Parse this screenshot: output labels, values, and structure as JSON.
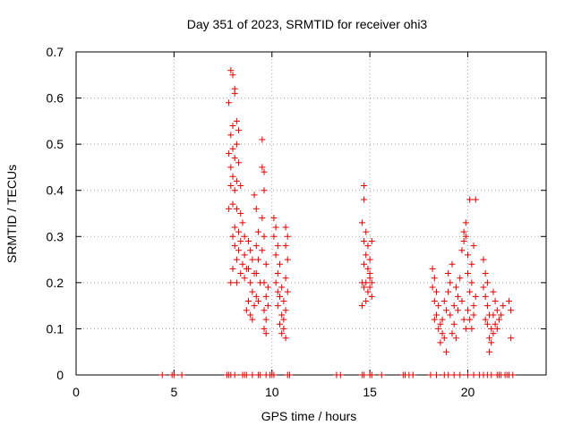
{
  "chart_data": {
    "type": "scatter",
    "title": "Day 351 of 2023, SRMTID for receiver ohi3",
    "xlabel": "GPS time / hours",
    "ylabel": "SRMTID / TECUs",
    "xlim": [
      0,
      24
    ],
    "ylim": [
      0,
      0.7
    ],
    "xticks": [
      0,
      5,
      10,
      15,
      20
    ],
    "xtick_labels": [
      "0",
      "5",
      "10",
      "15",
      "20"
    ],
    "yticks": [
      0,
      0.1,
      0.2,
      0.3,
      0.4,
      0.5,
      0.6,
      0.7
    ],
    "ytick_labels": [
      "0",
      "0.1",
      "0.2",
      "0.3",
      "0.4",
      "0.5",
      "0.6",
      "0.7"
    ],
    "grid": true,
    "marker": "plus",
    "color": "#e00000",
    "series": [
      {
        "name": "SRMTID",
        "points": [
          [
            4.4,
            0
          ],
          [
            4.9,
            0
          ],
          [
            5.0,
            0
          ],
          [
            5.4,
            0
          ],
          [
            7.7,
            0
          ],
          [
            7.8,
            0
          ],
          [
            7.9,
            0
          ],
          [
            8.1,
            0
          ],
          [
            8.5,
            0
          ],
          [
            8.6,
            0
          ],
          [
            8.7,
            0
          ],
          [
            9.0,
            0
          ],
          [
            9.3,
            0
          ],
          [
            9.4,
            0
          ],
          [
            9.7,
            0
          ],
          [
            9.9,
            0
          ],
          [
            10.0,
            0
          ],
          [
            10.1,
            0
          ],
          [
            10.8,
            0
          ],
          [
            10.9,
            0
          ],
          [
            13.3,
            0
          ],
          [
            13.5,
            0
          ],
          [
            14.6,
            0
          ],
          [
            14.7,
            0
          ],
          [
            15.0,
            0
          ],
          [
            15.1,
            0
          ],
          [
            15.6,
            0
          ],
          [
            16.7,
            0
          ],
          [
            16.8,
            0
          ],
          [
            17.0,
            0
          ],
          [
            17.2,
            0
          ],
          [
            18.1,
            0
          ],
          [
            18.4,
            0
          ],
          [
            18.8,
            0
          ],
          [
            19.0,
            0
          ],
          [
            19.3,
            0
          ],
          [
            19.6,
            0
          ],
          [
            20.0,
            0
          ],
          [
            20.3,
            0
          ],
          [
            20.6,
            0
          ],
          [
            20.8,
            0
          ],
          [
            21.0,
            0
          ],
          [
            21.2,
            0
          ],
          [
            21.5,
            0
          ],
          [
            21.6,
            0
          ],
          [
            21.7,
            0
          ],
          [
            21.9,
            0
          ],
          [
            22.0,
            0
          ],
          [
            22.1,
            0
          ],
          [
            22.3,
            0
          ],
          [
            7.9,
            0.66
          ],
          [
            8.0,
            0.65
          ],
          [
            8.1,
            0.62
          ],
          [
            8.1,
            0.61
          ],
          [
            7.8,
            0.59
          ],
          [
            8.0,
            0.54
          ],
          [
            8.2,
            0.55
          ],
          [
            8.3,
            0.53
          ],
          [
            7.9,
            0.52
          ],
          [
            8.2,
            0.5
          ],
          [
            8.0,
            0.49
          ],
          [
            8.1,
            0.47
          ],
          [
            7.8,
            0.48
          ],
          [
            7.9,
            0.45
          ],
          [
            8.3,
            0.46
          ],
          [
            8.0,
            0.43
          ],
          [
            8.2,
            0.42
          ],
          [
            7.9,
            0.41
          ],
          [
            8.1,
            0.4
          ],
          [
            8.4,
            0.41
          ],
          [
            8.0,
            0.37
          ],
          [
            8.2,
            0.36
          ],
          [
            7.8,
            0.36
          ],
          [
            8.4,
            0.35
          ],
          [
            8.5,
            0.33
          ],
          [
            8.1,
            0.32
          ],
          [
            8.3,
            0.31
          ],
          [
            8.0,
            0.3
          ],
          [
            8.4,
            0.29
          ],
          [
            8.6,
            0.3
          ],
          [
            8.1,
            0.28
          ],
          [
            8.3,
            0.27
          ],
          [
            8.6,
            0.26
          ],
          [
            8.2,
            0.25
          ],
          [
            8.5,
            0.24
          ],
          [
            8.0,
            0.23
          ],
          [
            8.4,
            0.22
          ],
          [
            8.7,
            0.23
          ],
          [
            8.2,
            0.2
          ],
          [
            8.6,
            0.21
          ],
          [
            7.9,
            0.2
          ],
          [
            8.8,
            0.29
          ],
          [
            8.9,
            0.27
          ],
          [
            9.0,
            0.25
          ],
          [
            8.8,
            0.23
          ],
          [
            9.1,
            0.22
          ],
          [
            8.9,
            0.2
          ],
          [
            9.0,
            0.18
          ],
          [
            8.8,
            0.16
          ],
          [
            9.1,
            0.15
          ],
          [
            8.9,
            0.13
          ],
          [
            9.0,
            0.12
          ],
          [
            8.7,
            0.14
          ],
          [
            9.2,
            0.17
          ],
          [
            9.1,
            0.39
          ],
          [
            9.2,
            0.36
          ],
          [
            9.3,
            0.31
          ],
          [
            9.2,
            0.28
          ],
          [
            9.3,
            0.25
          ],
          [
            9.2,
            0.22
          ],
          [
            9.4,
            0.2
          ],
          [
            9.3,
            0.16
          ],
          [
            9.5,
            0.51
          ],
          [
            9.5,
            0.45
          ],
          [
            9.6,
            0.44
          ],
          [
            9.6,
            0.4
          ],
          [
            9.5,
            0.34
          ],
          [
            9.6,
            0.3
          ],
          [
            9.5,
            0.27
          ],
          [
            9.7,
            0.24
          ],
          [
            9.6,
            0.2
          ],
          [
            9.7,
            0.17
          ],
          [
            9.6,
            0.14
          ],
          [
            9.7,
            0.12
          ],
          [
            9.6,
            0.1
          ],
          [
            9.7,
            0.09
          ],
          [
            9.8,
            0.15
          ],
          [
            9.8,
            0.19
          ],
          [
            10.1,
            0.34
          ],
          [
            10.2,
            0.32
          ],
          [
            10.1,
            0.3
          ],
          [
            10.3,
            0.28
          ],
          [
            10.2,
            0.26
          ],
          [
            10.4,
            0.24
          ],
          [
            10.3,
            0.22
          ],
          [
            10.2,
            0.2
          ],
          [
            10.5,
            0.19
          ],
          [
            10.4,
            0.17
          ],
          [
            10.3,
            0.15
          ],
          [
            10.5,
            0.13
          ],
          [
            10.4,
            0.11
          ],
          [
            10.6,
            0.1
          ],
          [
            10.7,
            0.08
          ],
          [
            10.5,
            0.09
          ],
          [
            10.6,
            0.12
          ],
          [
            10.7,
            0.14
          ],
          [
            10.8,
            0.18
          ],
          [
            10.7,
            0.21
          ],
          [
            10.8,
            0.25
          ],
          [
            10.7,
            0.28
          ],
          [
            10.8,
            0.3
          ],
          [
            10.7,
            0.32
          ],
          [
            10.6,
            0.16
          ],
          [
            10.3,
            0.18
          ],
          [
            14.6,
            0.2
          ],
          [
            14.7,
            0.41
          ],
          [
            14.7,
            0.38
          ],
          [
            14.6,
            0.33
          ],
          [
            14.8,
            0.31
          ],
          [
            14.7,
            0.29
          ],
          [
            14.9,
            0.28
          ],
          [
            14.8,
            0.26
          ],
          [
            14.7,
            0.24
          ],
          [
            14.9,
            0.23
          ],
          [
            15.0,
            0.21
          ],
          [
            14.8,
            0.2
          ],
          [
            15.0,
            0.19
          ],
          [
            14.9,
            0.18
          ],
          [
            15.1,
            0.17
          ],
          [
            14.8,
            0.16
          ],
          [
            14.6,
            0.15
          ],
          [
            15.0,
            0.25
          ],
          [
            15.1,
            0.29
          ],
          [
            15.0,
            0.22
          ],
          [
            14.7,
            0.19
          ],
          [
            15.1,
            0.2
          ],
          [
            18.2,
            0.23
          ],
          [
            18.3,
            0.21
          ],
          [
            18.2,
            0.19
          ],
          [
            18.4,
            0.18
          ],
          [
            18.3,
            0.16
          ],
          [
            18.5,
            0.15
          ],
          [
            18.4,
            0.13
          ],
          [
            18.3,
            0.12
          ],
          [
            18.6,
            0.11
          ],
          [
            18.5,
            0.1
          ],
          [
            18.7,
            0.09
          ],
          [
            18.8,
            0.08
          ],
          [
            18.6,
            0.07
          ],
          [
            18.9,
            0.05
          ],
          [
            18.7,
            0.12
          ],
          [
            18.9,
            0.14
          ],
          [
            18.8,
            0.16
          ],
          [
            19.0,
            0.18
          ],
          [
            19.1,
            0.2
          ],
          [
            19.0,
            0.22
          ],
          [
            19.2,
            0.24
          ],
          [
            19.1,
            0.13
          ],
          [
            19.3,
            0.11
          ],
          [
            19.2,
            0.09
          ],
          [
            19.4,
            0.08
          ],
          [
            19.3,
            0.15
          ],
          [
            19.5,
            0.17
          ],
          [
            19.4,
            0.19
          ],
          [
            19.6,
            0.21
          ],
          [
            19.5,
            0.14
          ],
          [
            19.7,
            0.27
          ],
          [
            19.8,
            0.29
          ],
          [
            19.8,
            0.31
          ],
          [
            19.9,
            0.33
          ],
          [
            19.9,
            0.3
          ],
          [
            20.0,
            0.26
          ],
          [
            20.0,
            0.22
          ],
          [
            20.1,
            0.38
          ],
          [
            19.7,
            0.16
          ],
          [
            19.8,
            0.12
          ],
          [
            19.9,
            0.1
          ],
          [
            20.0,
            0.14
          ],
          [
            20.1,
            0.18
          ],
          [
            20.2,
            0.2
          ],
          [
            20.1,
            0.12
          ],
          [
            20.2,
            0.1
          ],
          [
            20.3,
            0.13
          ],
          [
            20.4,
            0.38
          ],
          [
            20.3,
            0.15
          ],
          [
            20.4,
            0.17
          ],
          [
            20.2,
            0.24
          ],
          [
            20.3,
            0.28
          ],
          [
            20.8,
            0.25
          ],
          [
            20.9,
            0.22
          ],
          [
            20.8,
            0.19
          ],
          [
            20.9,
            0.17
          ],
          [
            21.0,
            0.15
          ],
          [
            21.1,
            0.13
          ],
          [
            21.0,
            0.11
          ],
          [
            21.2,
            0.1
          ],
          [
            21.1,
            0.08
          ],
          [
            21.3,
            0.09
          ],
          [
            21.2,
            0.07
          ],
          [
            21.4,
            0.11
          ],
          [
            21.3,
            0.13
          ],
          [
            21.5,
            0.14
          ],
          [
            21.4,
            0.16
          ],
          [
            21.6,
            0.12
          ],
          [
            21.5,
            0.1
          ],
          [
            21.7,
            0.13
          ],
          [
            21.8,
            0.15
          ],
          [
            22.1,
            0.16
          ],
          [
            22.2,
            0.14
          ],
          [
            22.2,
            0.08
          ],
          [
            21.0,
            0.2
          ],
          [
            21.3,
            0.18
          ],
          [
            20.9,
            0.12
          ],
          [
            21.1,
            0.05
          ]
        ]
      }
    ]
  }
}
